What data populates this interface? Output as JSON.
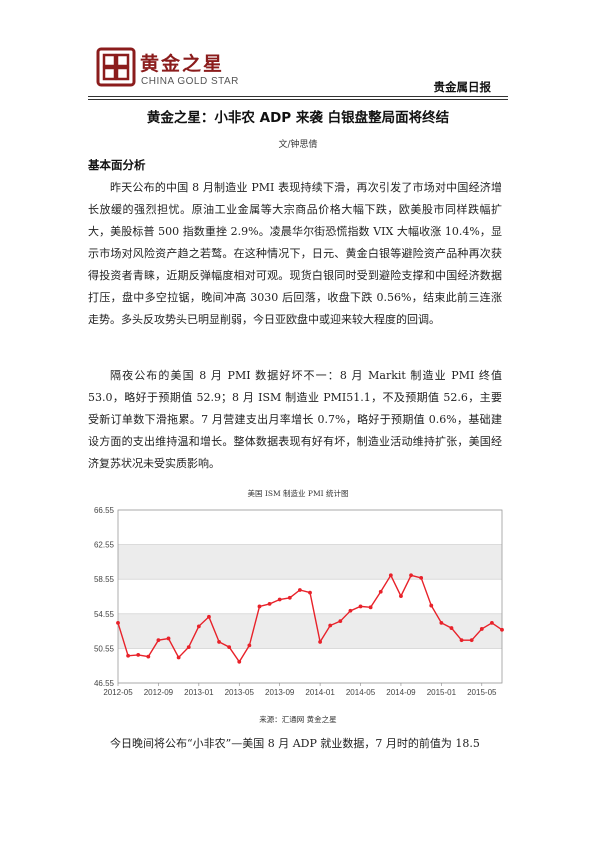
{
  "header": {
    "logo_cn": "黄金之星",
    "logo_en": "CHINA GOLD STAR",
    "report_name": "贵金属日报"
  },
  "article": {
    "title": "黄金之星：小非农 ADP 来袭 白银盘整局面将终结",
    "author": "文/钟思倩",
    "section": "基本面分析",
    "paragraphs": [
      "昨天公布的中国 8 月制造业 PMI 表现持续下滑，再次引发了市场对中国经济增长放缓的强烈担忧。原油工业金属等大宗商品价格大幅下跌，欧美股市同样跌幅扩大，美股标普 500 指数重挫 2.9%。凌晨华尔街恐慌指数 VIX 大幅收涨 10.4%，显示市场对风险资产趋之若鹜。在这种情况下，日元、黄金白银等避险资产品种再次获得投资者青睐，近期反弹幅度相对可观。现货白银同时受到避险支撑和中国经济数据打压，盘中多空拉锯，晚间冲高 3030 后回落，收盘下跌 0.56%，结束此前三连涨走势。多头反攻势头已明显削弱，今日亚欧盘中或迎来较大程度的回调。",
      "隔夜公布的美国 8 月 PMI 数据好坏不一：8 月 Markit 制造业 PMI 终值 53.0，略好于预期值 52.9；8 月 ISM 制造业 PMI51.1，不及预期值 52.6，主要受新订单数下滑拖累。7 月营建支出月率增长 0.7%，略好于预期值 0.6%，基础建设方面的支出维持温和增长。整体数据表现有好有坏，制造业活动维持扩张，美国经济复苏状况未受实质影响。",
      "今日晚间将公布“小非农”—美国 8 月 ADP 就业数据，7 月时的前值为 18.5"
    ]
  },
  "figure": {
    "title": "美国 ISM 制造业 PMI 统计图",
    "source": "来源：汇通网 黄金之星"
  },
  "chart_data": {
    "type": "line",
    "title": "美国 ISM 制造业 PMI 统计图",
    "ylim": [
      46.55,
      66.55
    ],
    "y_ticks": [
      "46.55",
      "50.55",
      "54.55",
      "58.55",
      "62.55",
      "66.55"
    ],
    "x_ticks": [
      "2012-05",
      "2012-09",
      "2013-01",
      "2013-05",
      "2013-09",
      "2014-01",
      "2014-05",
      "2014-09",
      "2015-01",
      "2015-05"
    ],
    "grid": true,
    "series": [
      {
        "color": "#e8222a",
        "x": [
          "2012-05",
          "2012-06",
          "2012-07",
          "2012-08",
          "2012-09",
          "2012-10",
          "2012-11",
          "2012-12",
          "2013-01",
          "2013-02",
          "2013-03",
          "2013-04",
          "2013-05",
          "2013-06",
          "2013-07",
          "2013-08",
          "2013-09",
          "2013-10",
          "2013-11",
          "2013-12",
          "2014-01",
          "2014-02",
          "2014-03",
          "2014-04",
          "2014-05",
          "2014-06",
          "2014-07",
          "2014-08",
          "2014-09",
          "2014-10",
          "2014-11",
          "2014-12",
          "2015-01",
          "2015-02",
          "2015-03",
          "2015-04",
          "2015-05",
          "2015-06",
          "2015-07"
        ],
        "values": [
          53.5,
          49.7,
          49.8,
          49.6,
          51.5,
          51.7,
          49.5,
          50.7,
          53.1,
          54.2,
          51.3,
          50.7,
          49.0,
          50.9,
          55.4,
          55.7,
          56.2,
          56.4,
          57.3,
          57.0,
          51.3,
          53.2,
          53.7,
          54.9,
          55.4,
          55.3,
          57.1,
          59.0,
          56.6,
          59.0,
          58.7,
          55.5,
          53.5,
          52.9,
          51.5,
          51.5,
          52.8,
          53.5,
          52.7
        ]
      }
    ]
  }
}
